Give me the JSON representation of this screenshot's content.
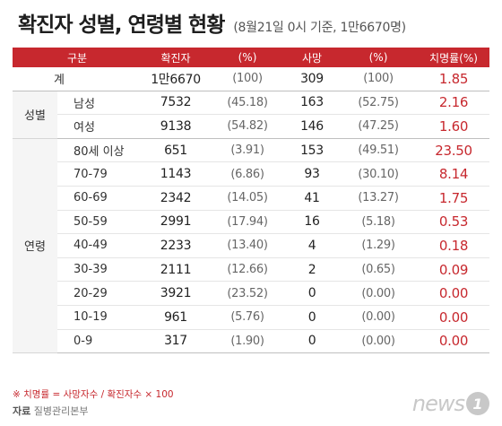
{
  "title": "확진자 성별, 연령별 현황",
  "subtitle": "(8월21일 0시 기준, 1만6670명)",
  "headers": [
    "구분",
    "확진자",
    "(%)",
    "사망",
    "(%)",
    "치명률(%)"
  ],
  "total": {
    "label": "계",
    "cases": "1만6670",
    "cases_pct": "(100)",
    "deaths": "309",
    "deaths_pct": "(100)",
    "cfr": "1.85"
  },
  "sex": {
    "group": "성별",
    "rows": [
      {
        "label": "남성",
        "cases": "7532",
        "cases_pct": "(45.18)",
        "deaths": "163",
        "deaths_pct": "(52.75)",
        "cfr": "2.16"
      },
      {
        "label": "여성",
        "cases": "9138",
        "cases_pct": "(54.82)",
        "deaths": "146",
        "deaths_pct": "(47.25)",
        "cfr": "1.60"
      }
    ]
  },
  "age": {
    "group": "연령",
    "rows": [
      {
        "label": "80세 이상",
        "cases": "651",
        "cases_pct": "(3.91)",
        "deaths": "153",
        "deaths_pct": "(49.51)",
        "cfr": "23.50"
      },
      {
        "label": "70-79",
        "cases": "1143",
        "cases_pct": "(6.86)",
        "deaths": "93",
        "deaths_pct": "(30.10)",
        "cfr": "8.14"
      },
      {
        "label": "60-69",
        "cases": "2342",
        "cases_pct": "(14.05)",
        "deaths": "41",
        "deaths_pct": "(13.27)",
        "cfr": "1.75"
      },
      {
        "label": "50-59",
        "cases": "2991",
        "cases_pct": "(17.94)",
        "deaths": "16",
        "deaths_pct": "(5.18)",
        "cfr": "0.53"
      },
      {
        "label": "40-49",
        "cases": "2233",
        "cases_pct": "(13.40)",
        "deaths": "4",
        "deaths_pct": "(1.29)",
        "cfr": "0.18"
      },
      {
        "label": "30-39",
        "cases": "2111",
        "cases_pct": "(12.66)",
        "deaths": "2",
        "deaths_pct": "(0.65)",
        "cfr": "0.09"
      },
      {
        "label": "20-29",
        "cases": "3921",
        "cases_pct": "(23.52)",
        "deaths": "0",
        "deaths_pct": "(0.00)",
        "cfr": "0.00"
      },
      {
        "label": "10-19",
        "cases": "961",
        "cases_pct": "(5.76)",
        "deaths": "0",
        "deaths_pct": "(0.00)",
        "cfr": "0.00"
      },
      {
        "label": "0-9",
        "cases": "317",
        "cases_pct": "(1.90)",
        "deaths": "0",
        "deaths_pct": "(0.00)",
        "cfr": "0.00"
      }
    ]
  },
  "note": "※ 치명률 = 사망자수 / 확진자수 × 100",
  "source_label": "자료",
  "source_value": "질병관리본부",
  "logo": {
    "text": "news",
    "mark": "1"
  },
  "colors": {
    "accent": "#c7282e",
    "group_bg": "#f5f5f5",
    "logo_gray": "#c8c8c8"
  }
}
